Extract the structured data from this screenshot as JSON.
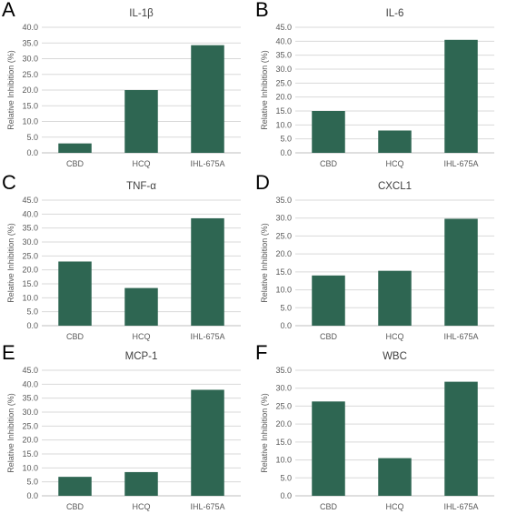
{
  "figure": {
    "panels": [
      {
        "letter": "A"
      },
      {
        "letter": "B"
      },
      {
        "letter": "C"
      },
      {
        "letter": "D"
      },
      {
        "letter": "E"
      },
      {
        "letter": "F"
      }
    ]
  },
  "chart_data": [
    {
      "type": "bar",
      "title": "IL-1β",
      "ylabel": "Relative Inhibition (%)",
      "xlabel": "",
      "categories": [
        "CBD",
        "HCQ",
        "IHL-675A"
      ],
      "values": [
        3.0,
        20.0,
        34.3
      ],
      "ylim": [
        0,
        40
      ],
      "yticks": [
        "0.0",
        "5.0",
        "10.0",
        "15.0",
        "20.0",
        "25.0",
        "30.0",
        "35.0",
        "40.0"
      ],
      "bar_color": "#2e6652",
      "grid": true
    },
    {
      "type": "bar",
      "title": "IL-6",
      "ylabel": "Relative Inhibition (%)",
      "xlabel": "",
      "categories": [
        "CBD",
        "HCQ",
        "IHL-675A"
      ],
      "values": [
        15.0,
        8.0,
        40.5
      ],
      "ylim": [
        0,
        45
      ],
      "yticks": [
        "0.0",
        "5.0",
        "10.0",
        "15.0",
        "20.0",
        "25.0",
        "30.0",
        "35.0",
        "40.0",
        "45.0"
      ],
      "bar_color": "#2e6652",
      "grid": true
    },
    {
      "type": "bar",
      "title": "TNF-α",
      "ylabel": "Relative Inhibition (%)",
      "xlabel": "",
      "categories": [
        "CBD",
        "HCQ",
        "IHL-675A"
      ],
      "values": [
        23.0,
        13.5,
        38.5
      ],
      "ylim": [
        0,
        45
      ],
      "yticks": [
        "0.0",
        "5.0",
        "10.0",
        "15.0",
        "20.0",
        "25.0",
        "30.0",
        "35.0",
        "40.0",
        "45.0"
      ],
      "bar_color": "#2e6652",
      "grid": true
    },
    {
      "type": "bar",
      "title": "CXCL1",
      "ylabel": "Relative Inhibition (%)",
      "xlabel": "",
      "categories": [
        "CBD",
        "HCQ",
        "IHL-675A"
      ],
      "values": [
        14.0,
        15.3,
        29.8
      ],
      "ylim": [
        0,
        35
      ],
      "yticks": [
        "0.0",
        "5.0",
        "10.0",
        "15.0",
        "20.0",
        "25.0",
        "30.0",
        "35.0"
      ],
      "bar_color": "#2e6652",
      "grid": true
    },
    {
      "type": "bar",
      "title": "MCP-1",
      "ylabel": "Relative Inhibition (%)",
      "xlabel": "",
      "categories": [
        "CBD",
        "HCQ",
        "IHL-675A"
      ],
      "values": [
        6.8,
        8.5,
        38.0
      ],
      "ylim": [
        0,
        45
      ],
      "yticks": [
        "0.0",
        "5.0",
        "10.0",
        "15.0",
        "20.0",
        "25.0",
        "30.0",
        "35.0",
        "40.0",
        "45.0"
      ],
      "bar_color": "#2e6652",
      "grid": true
    },
    {
      "type": "bar",
      "title": "WBC",
      "ylabel": "Relative Inhibition (%)",
      "xlabel": "",
      "categories": [
        "CBD",
        "HCQ",
        "IHL-675A"
      ],
      "values": [
        26.3,
        10.5,
        31.8
      ],
      "ylim": [
        0,
        35
      ],
      "yticks": [
        "0.0",
        "5.0",
        "10.0",
        "15.0",
        "20.0",
        "25.0",
        "30.0",
        "35.0"
      ],
      "bar_color": "#2e6652",
      "grid": true
    }
  ]
}
